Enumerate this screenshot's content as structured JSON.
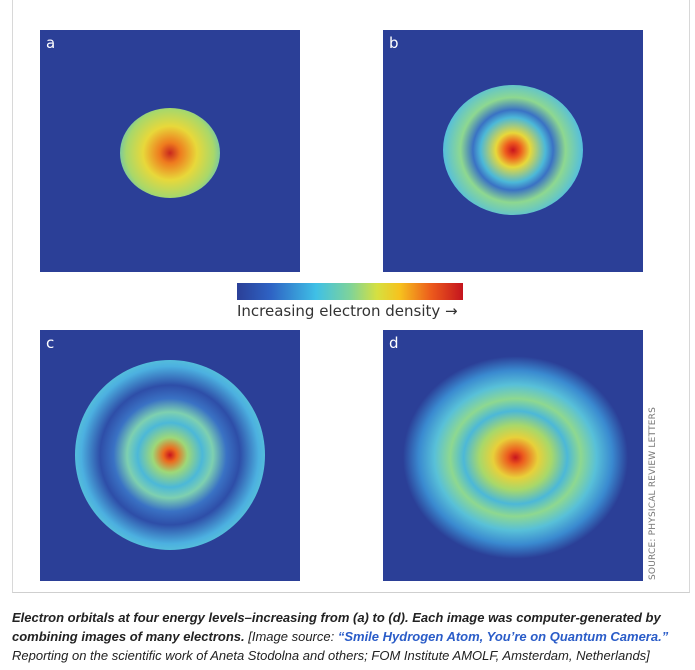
{
  "figure": {
    "panels": [
      {
        "label": "a"
      },
      {
        "label": "b"
      },
      {
        "label": "c"
      },
      {
        "label": "d"
      }
    ],
    "colorbar": {
      "label": "Increasing electron density →",
      "colors": [
        "#2b3f97",
        "#3fc0e6",
        "#7ed39a",
        "#d6e040",
        "#f6c21e",
        "#ec5a1c",
        "#c4141e"
      ]
    },
    "source_credit": "SOURCE: PHYSICAL REVIEW LETTERS"
  },
  "caption": {
    "bold": "Electron orbitals at four energy levels–increasing from (a) to (d). Each image was computer-generated by combining images of many electrons.",
    "source_prefix": " [Image source: ",
    "link_text": "“Smile Hydrogen Atom, You’re on Quantum Camera.”",
    "rest": " Reporting on the scientific work of Aneta Stodolna and others; FOM Institute AMOLF, Amsterdam, Netherlands]"
  }
}
